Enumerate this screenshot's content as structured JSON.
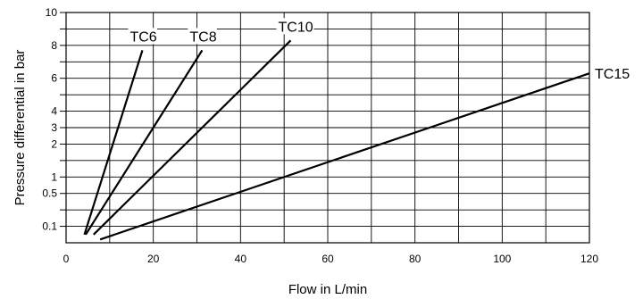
{
  "chart_data": {
    "type": "line",
    "title": "",
    "xlabel": "Flow in L/min",
    "ylabel": "Pressure differential in bar",
    "xlim": [
      0,
      120
    ],
    "x_ticks": [
      0,
      20,
      40,
      60,
      80,
      100,
      120
    ],
    "x_tick_labels": [
      "0",
      "20",
      "40",
      "60",
      "80",
      "100",
      "120"
    ],
    "x_minor_step": 10,
    "y_ticks": [
      {
        "label": "0.1",
        "major": true
      },
      {
        "label": "",
        "major": false
      },
      {
        "label": "0.5",
        "major": true
      },
      {
        "label": "1",
        "major": true
      },
      {
        "label": "",
        "major": false
      },
      {
        "label": "2",
        "major": true
      },
      {
        "label": "3",
        "major": true
      },
      {
        "label": "4",
        "major": true
      },
      {
        "label": "",
        "major": false
      },
      {
        "label": "6",
        "major": true
      },
      {
        "label": "",
        "major": false
      },
      {
        "label": "8",
        "major": true
      },
      {
        "label": "",
        "major": false
      },
      {
        "label": "10",
        "major": true
      }
    ],
    "y_zero_label": "",
    "grid": true,
    "series": [
      {
        "name": "TC6",
        "points": [
          [
            4.2,
            0.05
          ],
          [
            17.5,
            7.7
          ]
        ]
      },
      {
        "name": "TC8",
        "points": [
          [
            4.5,
            0.05
          ],
          [
            31.2,
            7.7
          ]
        ]
      },
      {
        "name": "TC10",
        "points": [
          [
            6.3,
            0.05
          ],
          [
            51.5,
            8.3
          ]
        ]
      },
      {
        "name": "TC15",
        "points": [
          [
            7.8,
            0.02
          ],
          [
            120.0,
            6.3
          ]
        ]
      }
    ],
    "colors": {
      "line": "#000000",
      "grid": "#000000"
    }
  }
}
